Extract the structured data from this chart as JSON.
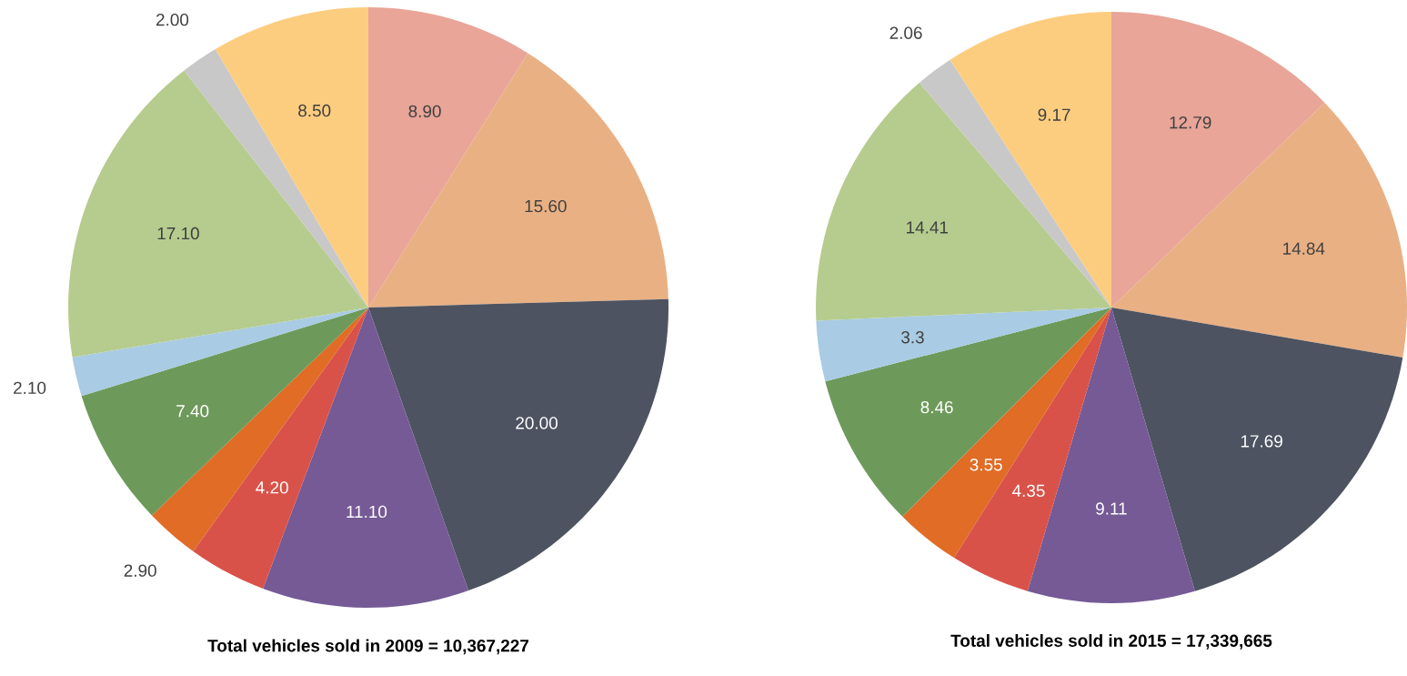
{
  "chart_data": [
    {
      "type": "pie",
      "title": "**Total vehicles sold in 2009 = 10,367,227**",
      "categories": [
        null,
        null,
        null,
        null,
        null,
        null,
        null,
        null,
        null,
        null,
        null
      ],
      "values": [
        8.9,
        15.6,
        20.0,
        11.1,
        4.2,
        2.9,
        7.4,
        2.1,
        17.1,
        2.0,
        8.5
      ],
      "value_labels": [
        "8.90",
        "15.60",
        "20.00",
        "11.10",
        "4.20",
        "2.90",
        "7.40",
        "2.10",
        "17.10",
        "2.00",
        "8.50"
      ],
      "colors": [
        "#e8a598",
        "#e9b084",
        "#4d5360",
        "#755a96",
        "#d9524a",
        "#e06c26",
        "#6d9a5a",
        "#a9cbe3",
        "#b5cc8e",
        "#c8c8c8",
        "#fdcd7f"
      ]
    },
    {
      "type": "pie",
      "title": "**Total vehicles sold in 2015 = 17,339,665**",
      "categories": [
        null,
        null,
        null,
        null,
        null,
        null,
        null,
        null,
        null,
        null,
        null
      ],
      "values": [
        12.79,
        14.84,
        17.69,
        9.11,
        4.35,
        3.55,
        8.46,
        3.3,
        14.41,
        2.06,
        9.17
      ],
      "value_labels": [
        "12.79",
        "14.84",
        "17.69",
        "9.11",
        "4.35",
        "3.55",
        "8.46",
        "3.3",
        "14.41",
        "2.06",
        "9.17"
      ],
      "colors": [
        "#e8a598",
        "#e9b084",
        "#4d5360",
        "#755a96",
        "#d9524a",
        "#e06c26",
        "#6d9a5a",
        "#a9cbe3",
        "#b5cc8e",
        "#c8c8c8",
        "#fdcd7f"
      ]
    }
  ]
}
